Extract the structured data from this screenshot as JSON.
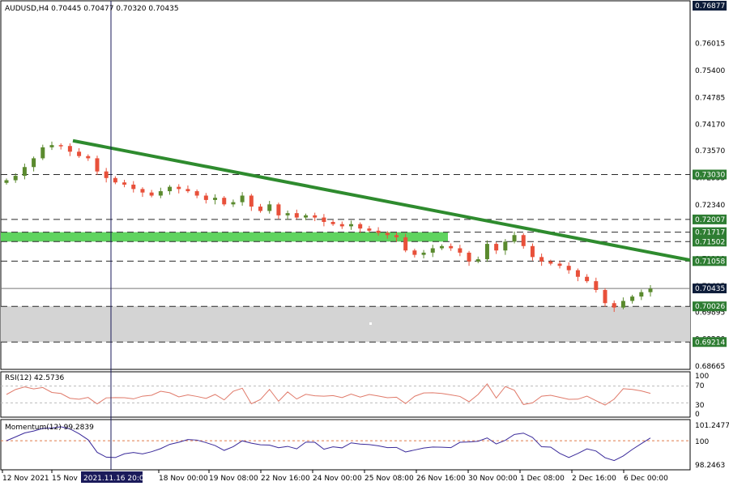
{
  "header": {
    "symbol_line": "AUDUSD,H4  0.70445 0.70477 0.70320 0.70435"
  },
  "colors": {
    "bull": "#5a8a2e",
    "bear": "#e8503a",
    "trend": "#2e8b2e",
    "zone_green": "#5fd35f",
    "zone_gray": "#d4d4d4",
    "indicator": "#3a2a9a"
  },
  "price_axis": {
    "ticks": [
      "0.76877",
      "0.76015",
      "0.75400",
      "0.74785",
      "0.74170",
      "0.73570",
      "0.72955",
      "0.72340",
      "0.71725",
      "0.71110",
      "0.70495",
      "0.69895",
      "0.69280",
      "0.68665"
    ],
    "boxes": [
      {
        "text": "0.76877",
        "style": "dark"
      },
      {
        "text": "0.73030",
        "style": "green"
      },
      {
        "text": "0.72007",
        "style": "green"
      },
      {
        "text": "0.71717",
        "style": "green"
      },
      {
        "text": "0.71502",
        "style": "green"
      },
      {
        "text": "0.71058",
        "style": "green"
      },
      {
        "text": "0.70435",
        "style": "dark"
      },
      {
        "text": "0.70026",
        "style": "green"
      },
      {
        "text": "0.69214",
        "style": "green"
      }
    ]
  },
  "rsi": {
    "label": "RSI(12) 42.5736",
    "ticks": [
      "100",
      "70",
      "30",
      "0"
    ]
  },
  "momentum": {
    "label": "Momentum(12) 99.2839",
    "ticks": [
      "101.2477",
      "100",
      "98.2463"
    ]
  },
  "time_axis": {
    "labels": [
      "12 Nov 2021",
      "15 Nov",
      "18 Nov 00:00",
      "19 Nov 08:00",
      "22 Nov 16:00",
      "24 Nov 00:00",
      "25 Nov 08:00",
      "26 Nov 16:00",
      "30 Nov 00:00",
      "1 Dec 08:00",
      "2 Dec 16:00",
      "6 Dec 00:00"
    ],
    "crosshair_label": "2021.11.16 20:00"
  },
  "chart_data": {
    "type": "candlestick",
    "symbol": "AUDUSD",
    "timeframe": "H4",
    "last_ohlc": {
      "open": 0.70445,
      "high": 0.70477,
      "low": 0.7032,
      "close": 0.70435
    },
    "price_range": [
      0.68665,
      0.76877
    ],
    "horizontal_levels": [
      0.7303,
      0.72007,
      0.71717,
      0.71502,
      0.71058,
      0.70026,
      0.69214
    ],
    "zones": [
      {
        "kind": "green",
        "from": 0.71502,
        "to": 0.71717
      },
      {
        "kind": "gray",
        "from": 0.69214,
        "to": 0.70026
      }
    ],
    "trendline": {
      "from": 0.738,
      "to": 0.7108
    },
    "close_series": [
      0.729,
      0.73,
      0.732,
      0.734,
      0.7365,
      0.737,
      0.7368,
      0.7355,
      0.7345,
      0.734,
      0.731,
      0.7295,
      0.7285,
      0.728,
      0.727,
      0.7262,
      0.7255,
      0.7265,
      0.7275,
      0.727,
      0.7265,
      0.7255,
      0.7245,
      0.725,
      0.7235,
      0.724,
      0.7255,
      0.723,
      0.722,
      0.7235,
      0.721,
      0.7215,
      0.7205,
      0.721,
      0.7205,
      0.7195,
      0.719,
      0.7185,
      0.719,
      0.718,
      0.7175,
      0.717,
      0.7165,
      0.716,
      0.713,
      0.712,
      0.7125,
      0.7135,
      0.714,
      0.7135,
      0.7125,
      0.7105,
      0.711,
      0.7145,
      0.713,
      0.715,
      0.7165,
      0.714,
      0.7115,
      0.7105,
      0.71,
      0.7095,
      0.7085,
      0.707,
      0.706,
      0.704,
      0.701,
      0.7,
      0.7015,
      0.7025,
      0.7035,
      0.7043
    ],
    "rsi_value": 42.5736,
    "momentum_value": 99.2839
  }
}
